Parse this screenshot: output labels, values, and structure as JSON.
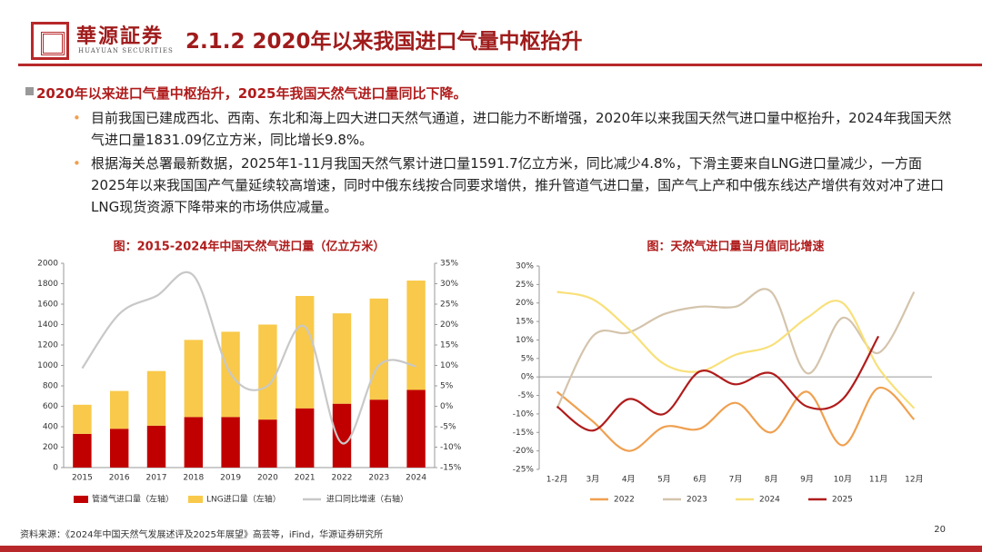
{
  "header": {
    "logo_name": "華源証券",
    "logo_sub": "HUAYUAN SECURITIES",
    "title": "2.1.2 2020年以来我国进口气量中枢抬升"
  },
  "bullets": {
    "main": "2020年以来进口气量中枢抬升，2025年我国天然气进口量同比下降。",
    "items": [
      "目前我国已建成西北、西南、东北和海上四大进口天然气通道，进口能力不断增强，2020年以来我国天然气进口量中枢抬升，2024年我国天然气进口量1831.09亿立方米，同比增长9.8%。",
      "根据海关总署最新数据，2025年1-11月我国天然气累计进口量1591.7亿立方米，同比减少4.8%，下滑主要来自LNG进口量减少，一方面2025年以来我国国产气量延续较高增速，同时中俄东线按合同要求增供，推升管道气进口量，国产气上产和中俄东线达产增供有效对冲了进口LNG现货资源下降带来的市场供应减量。"
    ]
  },
  "chart_data": [
    {
      "type": "bar",
      "title": "图：2015-2024年中国天然气进口量（亿立方米）",
      "stacked": true,
      "categories": [
        "2015",
        "2016",
        "2017",
        "2018",
        "2019",
        "2020",
        "2021",
        "2022",
        "2023",
        "2024"
      ],
      "series": [
        {
          "name": "管道气进口量（左轴）",
          "color": "#c00000",
          "type": "bar",
          "values": [
            330,
            380,
            410,
            495,
            495,
            470,
            580,
            625,
            665,
            760
          ]
        },
        {
          "name": "LNG进口量（左轴）",
          "color": "#f8c94a",
          "type": "bar",
          "values": [
            285,
            370,
            535,
            755,
            835,
            930,
            1100,
            885,
            990,
            1071
          ]
        },
        {
          "name": "进口同比增速（右轴）",
          "color": "#c8c8c8",
          "type": "line",
          "axis": "y2",
          "values": [
            9.3,
            22.6,
            27,
            32,
            8,
            5,
            19.5,
            -9,
            10,
            9.8
          ]
        }
      ],
      "ylim": [
        0,
        2000
      ],
      "yticks": [
        0,
        200,
        400,
        600,
        800,
        1000,
        1200,
        1400,
        1600,
        1800,
        2000
      ],
      "y2lim": [
        -15,
        35
      ],
      "y2ticks": [
        {
          "value": -15,
          "label": "-15%"
        },
        {
          "value": -10,
          "label": "-10%"
        },
        {
          "value": -5,
          "label": "-5%"
        },
        {
          "value": 0,
          "label": "0%"
        },
        {
          "value": 5,
          "label": "5%"
        },
        {
          "value": 10,
          "label": "10%"
        },
        {
          "value": 15,
          "label": "15%"
        },
        {
          "value": 20,
          "label": "20%"
        },
        {
          "value": 25,
          "label": "25%"
        },
        {
          "value": 30,
          "label": "30%"
        },
        {
          "value": 35,
          "label": "35%"
        }
      ]
    },
    {
      "type": "line",
      "title": "图：天然气进口量当月值同比增速",
      "categories": [
        "1-2月",
        "3月",
        "4月",
        "5月",
        "6月",
        "7月",
        "8月",
        "9月",
        "10月",
        "11月",
        "12月"
      ],
      "series": [
        {
          "name": "2022",
          "color": "#f0a050",
          "values": [
            -4,
            -12,
            -20,
            -13.5,
            -14,
            -7,
            -15,
            -4,
            -18.5,
            -3,
            -11.5
          ]
        },
        {
          "name": "2023",
          "color": "#d4c4ac",
          "values": [
            -8.5,
            11,
            12,
            17,
            19,
            19,
            23,
            1,
            16,
            6.5,
            23
          ]
        },
        {
          "name": "2024",
          "color": "#f8e07a",
          "values": [
            23,
            21,
            13,
            3.5,
            1.5,
            6,
            8.5,
            16,
            20,
            2.5,
            -8.5
          ]
        },
        {
          "name": "2025",
          "color": "#b01c1c",
          "values": [
            -8,
            -14.5,
            -6,
            -10,
            1.5,
            -2,
            1,
            -8,
            -6,
            11,
            null
          ]
        }
      ],
      "ylim": [
        -25,
        30
      ],
      "yticks": [
        {
          "value": -25,
          "label": "-25%"
        },
        {
          "value": -20,
          "label": "-20%"
        },
        {
          "value": -15,
          "label": "-15%"
        },
        {
          "value": -10,
          "label": "-10%"
        },
        {
          "value": -5,
          "label": "-5%"
        },
        {
          "value": 0,
          "label": "0%"
        },
        {
          "value": 5,
          "label": "5%"
        },
        {
          "value": 10,
          "label": "10%"
        },
        {
          "value": 15,
          "label": "15%"
        },
        {
          "value": 20,
          "label": "20%"
        },
        {
          "value": 25,
          "label": "25%"
        },
        {
          "value": 30,
          "label": "30%"
        }
      ]
    }
  ],
  "footer": {
    "source": "资料来源：《2024年中国天然气发展述评及2025年展望》高芸等，iFind，华源证券研究所",
    "page": "20"
  }
}
